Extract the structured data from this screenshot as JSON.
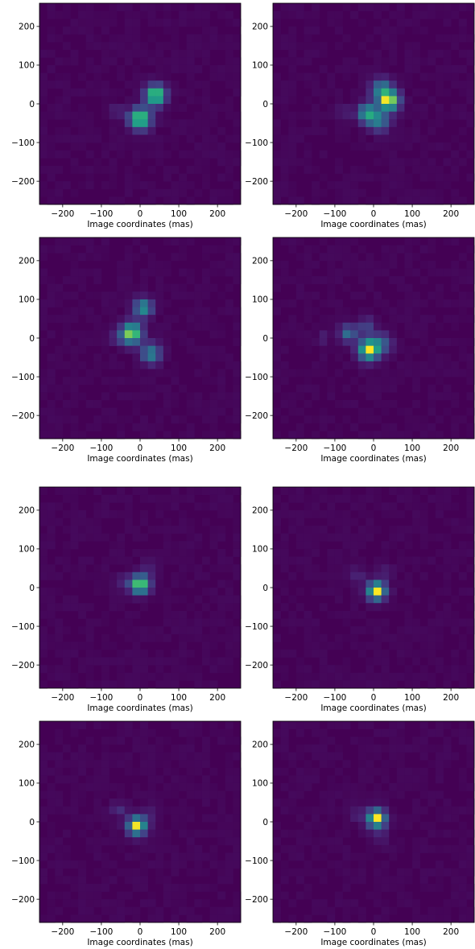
{
  "figure": {
    "colors": {
      "background": "#ffffff",
      "axis": "#000000",
      "colormap": "viridis"
    }
  },
  "chart_data": [
    {
      "type": "heatmap",
      "title": "",
      "xlabel": "Image coordinates (mas)",
      "ylabel": "",
      "xlim": [
        -260,
        260
      ],
      "ylim": [
        -260,
        260
      ],
      "xticks": [
        "-200",
        "-100",
        "0",
        "100",
        "200"
      ],
      "yticks": [
        "200",
        "100",
        "0",
        "-100",
        "-200"
      ],
      "grid": false,
      "pixel_size_mas": 20,
      "components": [
        {
          "x": 40,
          "y": 22,
          "sigma": 17,
          "amp": 1.0
        },
        {
          "x": 0,
          "y": -38,
          "sigma": 18,
          "amp": 1.0
        },
        {
          "x": -60,
          "y": -18,
          "sigma": 12,
          "amp": 0.15
        }
      ]
    },
    {
      "type": "heatmap",
      "title": "",
      "xlabel": "Image coordinates (mas)",
      "ylabel": "",
      "xlim": [
        -260,
        260
      ],
      "ylim": [
        -260,
        260
      ],
      "xticks": [
        "-200",
        "-100",
        "0",
        "100",
        "200"
      ],
      "yticks": [
        "200",
        "100",
        "0",
        "-100",
        "-200"
      ],
      "grid": false,
      "pixel_size_mas": 20,
      "components": [
        {
          "x": 40,
          "y": 8,
          "sigma": 18,
          "amp": 1.0
        },
        {
          "x": -15,
          "y": -25,
          "sigma": 17,
          "amp": 0.7
        },
        {
          "x": 20,
          "y": 38,
          "sigma": 18,
          "amp": 0.5
        },
        {
          "x": 15,
          "y": -45,
          "sigma": 18,
          "amp": 0.45
        },
        {
          "x": -75,
          "y": -20,
          "sigma": 12,
          "amp": 0.12
        }
      ]
    },
    {
      "type": "heatmap",
      "title": "",
      "xlabel": "Image coordinates (mas)",
      "ylabel": "",
      "xlim": [
        -260,
        260
      ],
      "ylim": [
        -260,
        260
      ],
      "xticks": [
        "-200",
        "-100",
        "0",
        "100",
        "200"
      ],
      "yticks": [
        "200",
        "100",
        "0",
        "-100",
        "-200"
      ],
      "grid": false,
      "pixel_size_mas": 20,
      "components": [
        {
          "x": -22,
          "y": 12,
          "sigma": 18,
          "amp": 1.0
        },
        {
          "x": 8,
          "y": 78,
          "sigma": 16,
          "amp": 0.65
        },
        {
          "x": 28,
          "y": -40,
          "sigma": 17,
          "amp": 0.55
        },
        {
          "x": -60,
          "y": 0,
          "sigma": 12,
          "amp": 0.15
        }
      ]
    },
    {
      "type": "heatmap",
      "title": "",
      "xlabel": "Image coordinates (mas)",
      "ylabel": "",
      "xlim": [
        -260,
        260
      ],
      "ylim": [
        -260,
        260
      ],
      "xticks": [
        "-200",
        "-100",
        "0",
        "100",
        "200"
      ],
      "yticks": [
        "200",
        "100",
        "0",
        "-100",
        "-200"
      ],
      "grid": false,
      "pixel_size_mas": 20,
      "components": [
        {
          "x": -12,
          "y": -30,
          "sigma": 18,
          "amp": 1.0
        },
        {
          "x": -65,
          "y": 12,
          "sigma": 15,
          "amp": 0.45
        },
        {
          "x": 20,
          "y": -15,
          "sigma": 18,
          "amp": 0.35
        },
        {
          "x": -18,
          "y": 30,
          "sigma": 15,
          "amp": 0.25
        },
        {
          "x": -130,
          "y": 0,
          "sigma": 10,
          "amp": 0.12
        }
      ]
    },
    {
      "type": "heatmap",
      "title": "",
      "xlabel": "Image coordinates (mas)",
      "ylabel": "",
      "xlim": [
        -260,
        260
      ],
      "ylim": [
        -260,
        260
      ],
      "xticks": [
        "-200",
        "-100",
        "0",
        "100",
        "200"
      ],
      "yticks": [
        "200",
        "100",
        "0",
        "-100",
        "-200"
      ],
      "grid": false,
      "pixel_size_mas": 20,
      "components": [
        {
          "x": 0,
          "y": 8,
          "sigma": 16,
          "amp": 1.0
        },
        {
          "x": -40,
          "y": 15,
          "sigma": 14,
          "amp": 0.12
        },
        {
          "x": 20,
          "y": 50,
          "sigma": 14,
          "amp": 0.1
        }
      ]
    },
    {
      "type": "heatmap",
      "title": "",
      "xlabel": "Image coordinates (mas)",
      "ylabel": "",
      "xlim": [
        -260,
        260
      ],
      "ylim": [
        -260,
        260
      ],
      "xticks": [
        "-200",
        "-100",
        "0",
        "100",
        "200"
      ],
      "yticks": [
        "200",
        "100",
        "0",
        "-100",
        "-200"
      ],
      "grid": false,
      "pixel_size_mas": 20,
      "components": [
        {
          "x": 8,
          "y": -8,
          "sigma": 16,
          "amp": 1.0
        },
        {
          "x": -40,
          "y": 30,
          "sigma": 14,
          "amp": 0.12
        },
        {
          "x": 30,
          "y": 40,
          "sigma": 14,
          "amp": 0.1
        }
      ]
    },
    {
      "type": "heatmap",
      "title": "",
      "xlabel": "Image coordinates (mas)",
      "ylabel": "",
      "xlim": [
        -260,
        260
      ],
      "ylim": [
        -260,
        260
      ],
      "xticks": [
        "-200",
        "-100",
        "0",
        "100",
        "200"
      ],
      "yticks": [
        "200",
        "100",
        "0",
        "-100",
        "-200"
      ],
      "grid": false,
      "pixel_size_mas": 20,
      "components": [
        {
          "x": -8,
          "y": -10,
          "sigma": 16,
          "amp": 1.0
        },
        {
          "x": -55,
          "y": 30,
          "sigma": 13,
          "amp": 0.15
        },
        {
          "x": 25,
          "y": 20,
          "sigma": 14,
          "amp": 0.1
        }
      ]
    },
    {
      "type": "heatmap",
      "title": "",
      "xlabel": "Image coordinates (mas)",
      "ylabel": "",
      "xlim": [
        -260,
        260
      ],
      "ylim": [
        -260,
        260
      ],
      "xticks": [
        "-200",
        "-100",
        "0",
        "100",
        "200"
      ],
      "yticks": [
        "200",
        "100",
        "0",
        "-100",
        "-200"
      ],
      "grid": false,
      "pixel_size_mas": 20,
      "components": [
        {
          "x": 8,
          "y": 8,
          "sigma": 16,
          "amp": 1.0
        },
        {
          "x": -40,
          "y": 20,
          "sigma": 13,
          "amp": 0.12
        },
        {
          "x": 20,
          "y": -40,
          "sigma": 14,
          "amp": 0.1
        }
      ]
    }
  ]
}
